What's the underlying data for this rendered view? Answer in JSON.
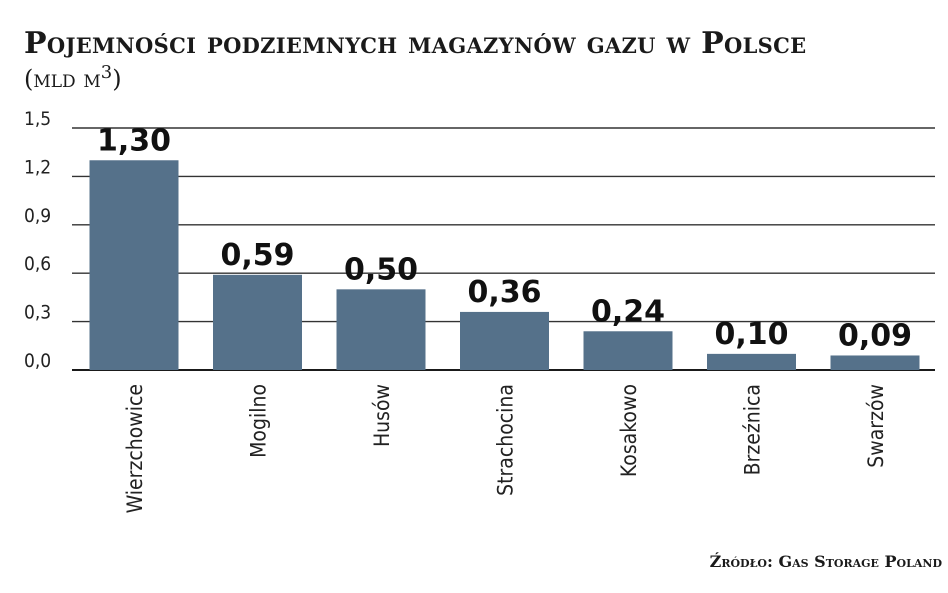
{
  "chart_data": {
    "type": "bar",
    "title": "Pojemności podziemnych magazynów gazu w Polsce",
    "subtitle": "(mld m3)",
    "source": "Źródło: Gas Storage Poland",
    "categories": [
      "Wierzchowice",
      "Mogilno",
      "Husów",
      "Strachocina",
      "Kosakowo",
      "Brzeźnica",
      "Swarzów"
    ],
    "values": [
      1.3,
      0.59,
      0.5,
      0.36,
      0.24,
      0.1,
      0.09
    ],
    "value_labels": [
      "1,30",
      "0,59",
      "0,50",
      "0,36",
      "0,24",
      "0,10",
      "0,09"
    ],
    "yticks": [
      "0,0",
      "0,3",
      "0,6",
      "0,9",
      "1,2",
      "1,5"
    ],
    "ylim": [
      0,
      1.5
    ],
    "grid": true,
    "bar_color": "#55718a",
    "xlabel": "",
    "ylabel": ""
  }
}
